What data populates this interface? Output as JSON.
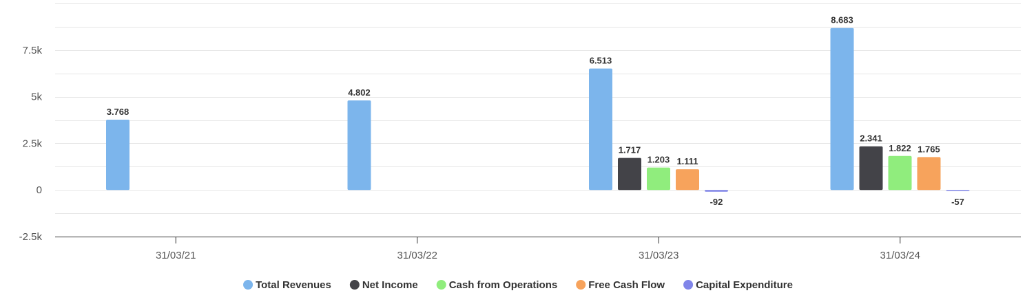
{
  "chart_data": {
    "type": "bar",
    "categories": [
      "31/03/21",
      "31/03/22",
      "31/03/23",
      "31/03/24"
    ],
    "y_ticks": [
      {
        "value": -2500,
        "label": "-2.5k"
      },
      {
        "value": 0,
        "label": "0"
      },
      {
        "value": 2500,
        "label": "2.5k"
      },
      {
        "value": 5000,
        "label": "5k"
      },
      {
        "value": 7500,
        "label": "7.5k"
      }
    ],
    "ylim": [
      -2500,
      10000
    ],
    "grid": true,
    "legend_position": "bottom-center",
    "series": [
      {
        "name": "Total Revenues",
        "color": "#7cb5ec",
        "values": [
          3768,
          4802,
          6513,
          8683
        ],
        "labels": [
          "3.768",
          "4.802",
          "6.513",
          "8.683"
        ]
      },
      {
        "name": "Net Income",
        "color": "#434348",
        "values": [
          null,
          null,
          1717,
          2341
        ],
        "labels": [
          "",
          "",
          "1.717",
          "2.341"
        ]
      },
      {
        "name": "Cash from Operations",
        "color": "#90ed7d",
        "values": [
          null,
          null,
          1203,
          1822
        ],
        "labels": [
          "",
          "",
          "1.203",
          "1.822"
        ]
      },
      {
        "name": "Free Cash Flow",
        "color": "#f7a35c",
        "values": [
          null,
          null,
          1111,
          1765
        ],
        "labels": [
          "",
          "",
          "1.111",
          "1.765"
        ]
      },
      {
        "name": "Capital Expenditure",
        "color": "#8085e9",
        "values": [
          null,
          null,
          -92,
          -57
        ],
        "labels": [
          "",
          "",
          "-92",
          "-57"
        ]
      }
    ]
  }
}
